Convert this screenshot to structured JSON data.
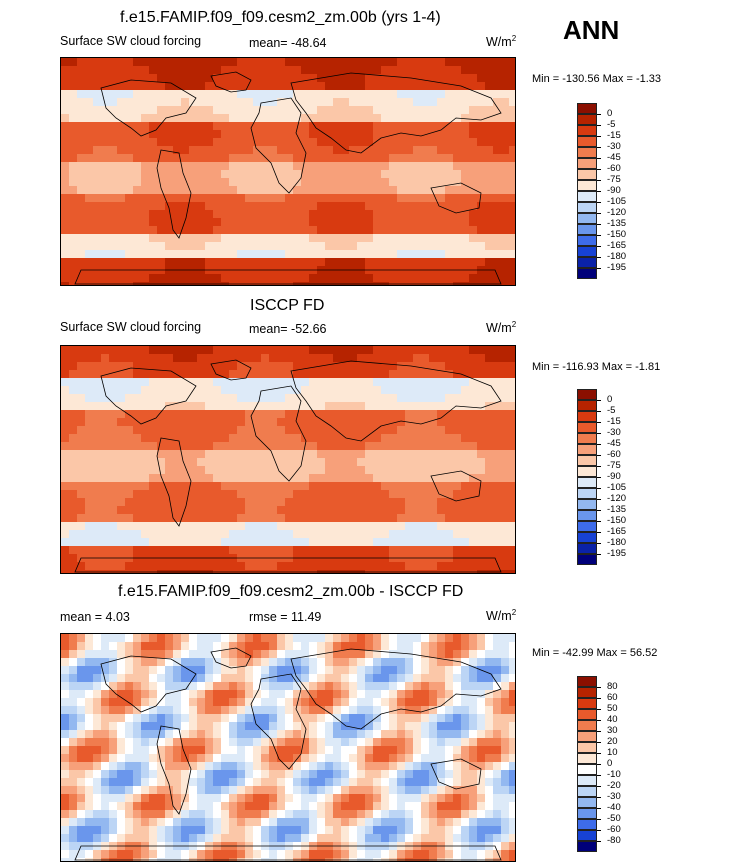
{
  "season": "ANN",
  "panels": [
    {
      "title": "f.e15.FAMIP.f09_f09.cesm2_zm.00b (yrs 1-4)",
      "left_label": "Surface SW cloud forcing",
      "center_label": "mean= -48.64",
      "units_label": "W/m",
      "units_sup": "2",
      "minmax": "Min = -130.56 Max =  -1.33",
      "colorbar_labels": [
        "0",
        "-5",
        "-15",
        "-30",
        "-45",
        "-60",
        "-75",
        "-90",
        "-105",
        "-120",
        "-135",
        "-150",
        "-165",
        "-180",
        "-195"
      ],
      "kind": "model"
    },
    {
      "title": "ISCCP FD",
      "left_label": "Surface SW cloud forcing",
      "center_label": "mean= -52.66",
      "units_label": "W/m",
      "units_sup": "2",
      "minmax": "Min = -116.93 Max =  -1.81",
      "colorbar_labels": [
        "0",
        "-5",
        "-15",
        "-30",
        "-45",
        "-60",
        "-75",
        "-90",
        "-105",
        "-120",
        "-135",
        "-150",
        "-165",
        "-180",
        "-195"
      ],
      "kind": "obs"
    },
    {
      "title": "f.e15.FAMIP.f09_f09.cesm2_zm.00b - ISCCP FD",
      "left_label": "mean =   4.03",
      "center_label": "rmse =  11.49",
      "units_label": "W/m",
      "units_sup": "2",
      "minmax": "Min = -42.99 Max =  56.52",
      "colorbar_labels": [
        "80",
        "60",
        "50",
        "40",
        "30",
        "20",
        "10",
        "0",
        "-10",
        "-20",
        "-30",
        "-40",
        "-50",
        "-60",
        "-80"
      ],
      "kind": "diff"
    }
  ],
  "colors": {
    "forcing_scale": [
      "#8b0f00",
      "#b62300",
      "#d83a10",
      "#e85a2c",
      "#f07c4e",
      "#f7a07a",
      "#fbc7a8",
      "#fde8d6",
      "#ddeaf8",
      "#bcd5f5",
      "#93b8f0",
      "#6a96ec",
      "#3e6cea",
      "#1742d4",
      "#0a22a8",
      "#00007a"
    ],
    "diff_scale": [
      "#8b0f00",
      "#b62300",
      "#d83a10",
      "#e85a2c",
      "#f07c4e",
      "#f7a07a",
      "#fbc7a8",
      "#fde8d6",
      "#ffffff",
      "#ddeaf8",
      "#bcd5f5",
      "#93b8f0",
      "#6a96ec",
      "#3e6cea",
      "#1742d4",
      "#00007a"
    ]
  }
}
